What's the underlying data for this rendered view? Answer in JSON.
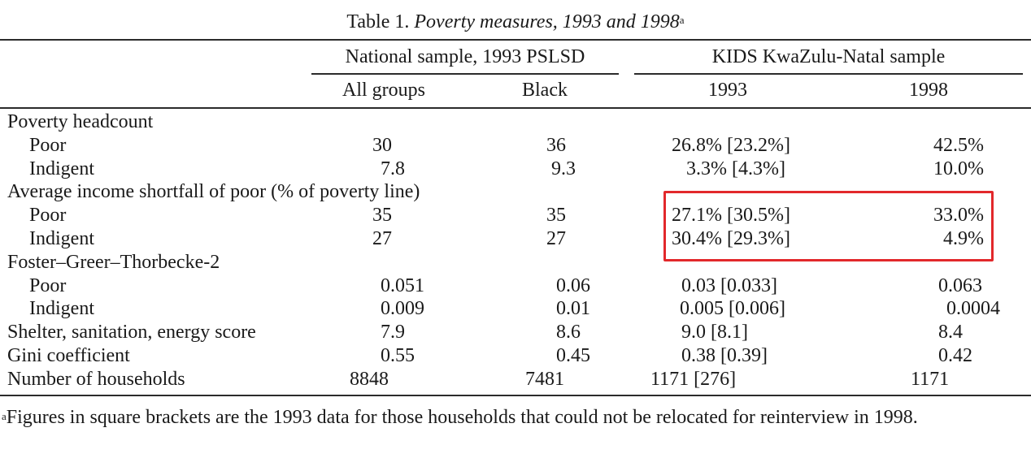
{
  "caption": {
    "prefix": "Table 1.",
    "title": "Poverty measures, 1993 and 1998",
    "note_marker": "a"
  },
  "group_headers": {
    "national": "National sample, 1993 PSLSD",
    "kids": "KIDS KwaZulu-Natal sample"
  },
  "column_headers": [
    "All groups",
    "Black",
    "1993",
    "1998"
  ],
  "rows": [
    {
      "label": "Poverty headcount",
      "section": true
    },
    {
      "label": "Poor",
      "values": [
        "30",
        "36",
        "26.8% [23.2%]",
        "42.5%"
      ]
    },
    {
      "label": "Indigent",
      "values": [
        "7.8",
        "9.3",
        "3.3% [4.3%]",
        "10.0%"
      ]
    },
    {
      "label": "Average income shortfall of poor (% of poverty line)",
      "section": true
    },
    {
      "label": "Poor",
      "values": [
        "35",
        "35",
        "27.1% [30.5%]",
        "33.0%"
      ]
    },
    {
      "label": "Indigent",
      "values": [
        "27",
        "27",
        "30.4% [29.3%]",
        "4.9%"
      ]
    },
    {
      "label": "Foster–Greer–Thorbecke-2",
      "section": true
    },
    {
      "label": "Poor",
      "values": [
        "0.051",
        "0.06",
        "0.03 [0.033]",
        "0.063"
      ]
    },
    {
      "label": "Indigent",
      "values": [
        "0.009",
        "0.01",
        "0.005 [0.006]",
        "0.0004"
      ]
    },
    {
      "label": "Shelter, sanitation, energy score",
      "values": [
        "7.9",
        "8.6",
        "9.0 [8.1]",
        "8.4"
      ]
    },
    {
      "label": "Gini coefficient",
      "values": [
        "0.55",
        "0.45",
        "0.38 [0.39]",
        "0.42"
      ]
    },
    {
      "label": "Number of households",
      "values": [
        "8848",
        "7481",
        "1171 [276]",
        "1171"
      ]
    }
  ],
  "footnote": {
    "marker": "a",
    "text": "Figures in square brackets are the 1993 data for those households that could not be relocated for reinterview in 1998."
  },
  "highlight_color": "#e2282b"
}
